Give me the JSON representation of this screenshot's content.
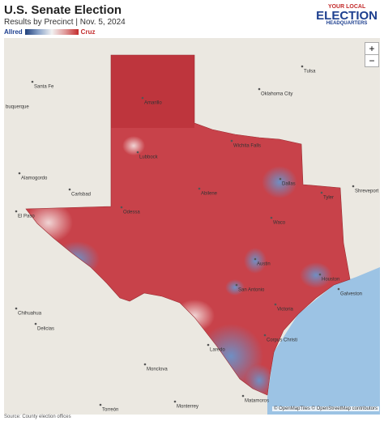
{
  "header": {
    "title": "U.S. Senate Election",
    "subtitle": "Results by Precinct | Nov. 5, 2024"
  },
  "legend": {
    "left": "Allred",
    "right": "Cruz"
  },
  "logo": {
    "lines": [
      "YOUR LOCAL",
      "ELECTION",
      "HEADQUARTERS"
    ]
  },
  "map": {
    "cities": [
      "Santa Fe",
      "Tulsa",
      "Oklahoma City",
      "buquerque",
      "Amarillo",
      "Wichita Falls",
      "Lubbock",
      "Alamogordo",
      "Carlsbad",
      "Dallas",
      "Abilene",
      "Tyler",
      "Shreveport",
      "El Paso",
      "Odessa",
      "Waco",
      "Austin",
      "San Antonio",
      "Houston",
      "Galveston",
      "Chihuahua",
      "Delicias",
      "Victoria",
      "Corpus Christi",
      "Laredo",
      "Monclova",
      "Torreón",
      "Monterrey",
      "Matamoros"
    ],
    "zoom_in": "+",
    "zoom_out": "−",
    "attribution": "© OpenMapTiles © OpenStreetMap contributors"
  },
  "footer": {
    "source": "Source: County election offices"
  }
}
